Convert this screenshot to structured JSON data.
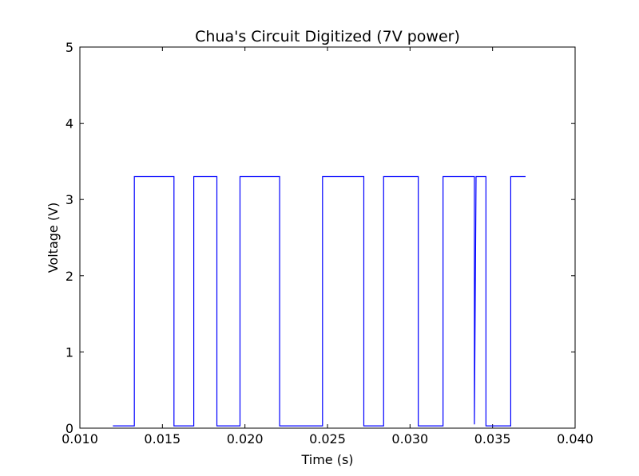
{
  "chart_data": {
    "type": "line",
    "title": "Chua's Circuit Digitized (7V power)",
    "xlabel": "Time (s)",
    "ylabel": "Voltage (V)",
    "xlim": [
      0.01,
      0.04
    ],
    "ylim": [
      0,
      5
    ],
    "xticks": [
      "0.010",
      "0.015",
      "0.020",
      "0.025",
      "0.030",
      "0.035",
      "0.040"
    ],
    "yticks": [
      "0",
      "1",
      "2",
      "3",
      "4",
      "5"
    ],
    "grid": false,
    "legend": "none",
    "series": [
      {
        "color": "#0000ff",
        "x": [
          0.012,
          0.0133,
          0.0133,
          0.0157,
          0.0157,
          0.0169,
          0.0169,
          0.0183,
          0.0183,
          0.0197,
          0.0197,
          0.0221,
          0.0221,
          0.0247,
          0.0247,
          0.0272,
          0.0272,
          0.0284,
          0.0284,
          0.0305,
          0.0305,
          0.032,
          0.032,
          0.0339,
          0.0339,
          0.034,
          0.034,
          0.0346,
          0.0346,
          0.0361,
          0.0361,
          0.037
        ],
        "y": [
          0.03,
          0.03,
          3.3,
          3.3,
          0.03,
          0.03,
          3.3,
          3.3,
          0.03,
          0.03,
          3.3,
          3.3,
          0.03,
          0.03,
          3.3,
          3.3,
          0.03,
          0.03,
          3.3,
          3.3,
          0.03,
          0.03,
          3.3,
          3.3,
          0.05,
          3.3,
          3.3,
          3.3,
          0.03,
          0.03,
          3.3,
          3.3
        ]
      }
    ]
  }
}
